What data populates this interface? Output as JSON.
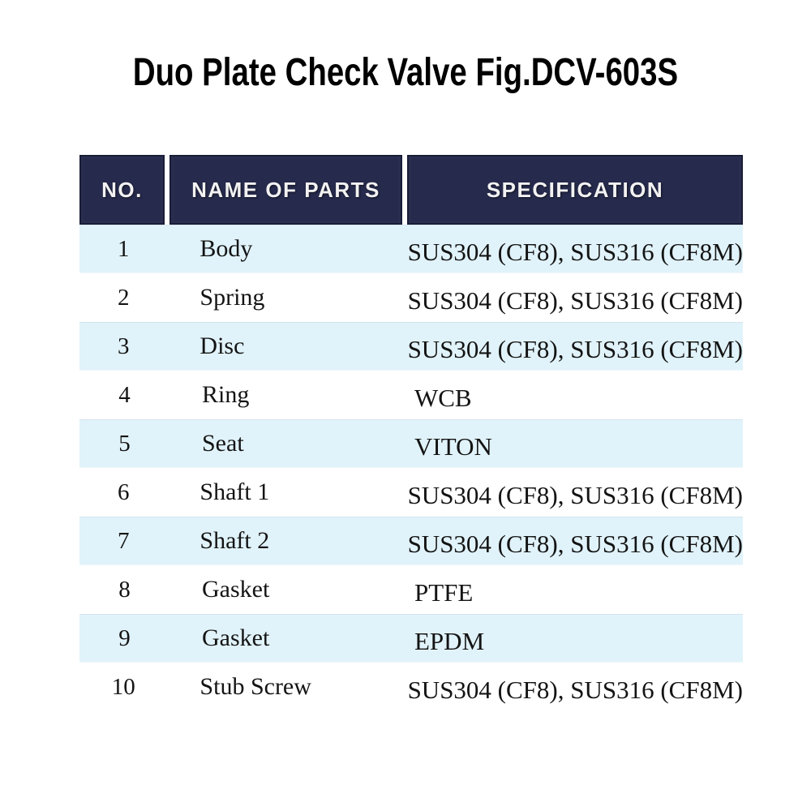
{
  "title": "Duo Plate Check Valve Fig.DCV-603S",
  "table": {
    "columns": [
      "NO.",
      "NAME OF PARTS",
      "SPECIFICATION"
    ],
    "rows": [
      {
        "no": "1",
        "name": "Body",
        "spec": "SUS304 (CF8), SUS316 (CF8M)"
      },
      {
        "no": "2",
        "name": "Spring",
        "spec": "SUS304 (CF8), SUS316 (CF8M)"
      },
      {
        "no": "3",
        "name": "Disc",
        "spec": "SUS304 (CF8), SUS316 (CF8M)"
      },
      {
        "no": "4",
        "name": "Ring",
        "spec": "WCB"
      },
      {
        "no": "5",
        "name": "Seat",
        "spec": "VITON"
      },
      {
        "no": "6",
        "name": "Shaft 1",
        "spec": "SUS304 (CF8), SUS316 (CF8M)"
      },
      {
        "no": "7",
        "name": "Shaft 2",
        "spec": "SUS304 (CF8), SUS316 (CF8M)"
      },
      {
        "no": "8",
        "name": "Gasket",
        "spec": "PTFE"
      },
      {
        "no": "9",
        "name": "Gasket",
        "spec": "EPDM"
      },
      {
        "no": "10",
        "name": "Stub Screw",
        "spec": "SUS304 (CF8), SUS316 (CF8M)"
      }
    ]
  },
  "colors": {
    "header_bg": "#262a4c",
    "header_border": "#1a1d38",
    "header_text": "#f2f2f2",
    "row_alt_bg": "#e1f3fa",
    "row_bg": "#ffffff",
    "body_text": "#141414",
    "title_text": "#000000"
  }
}
